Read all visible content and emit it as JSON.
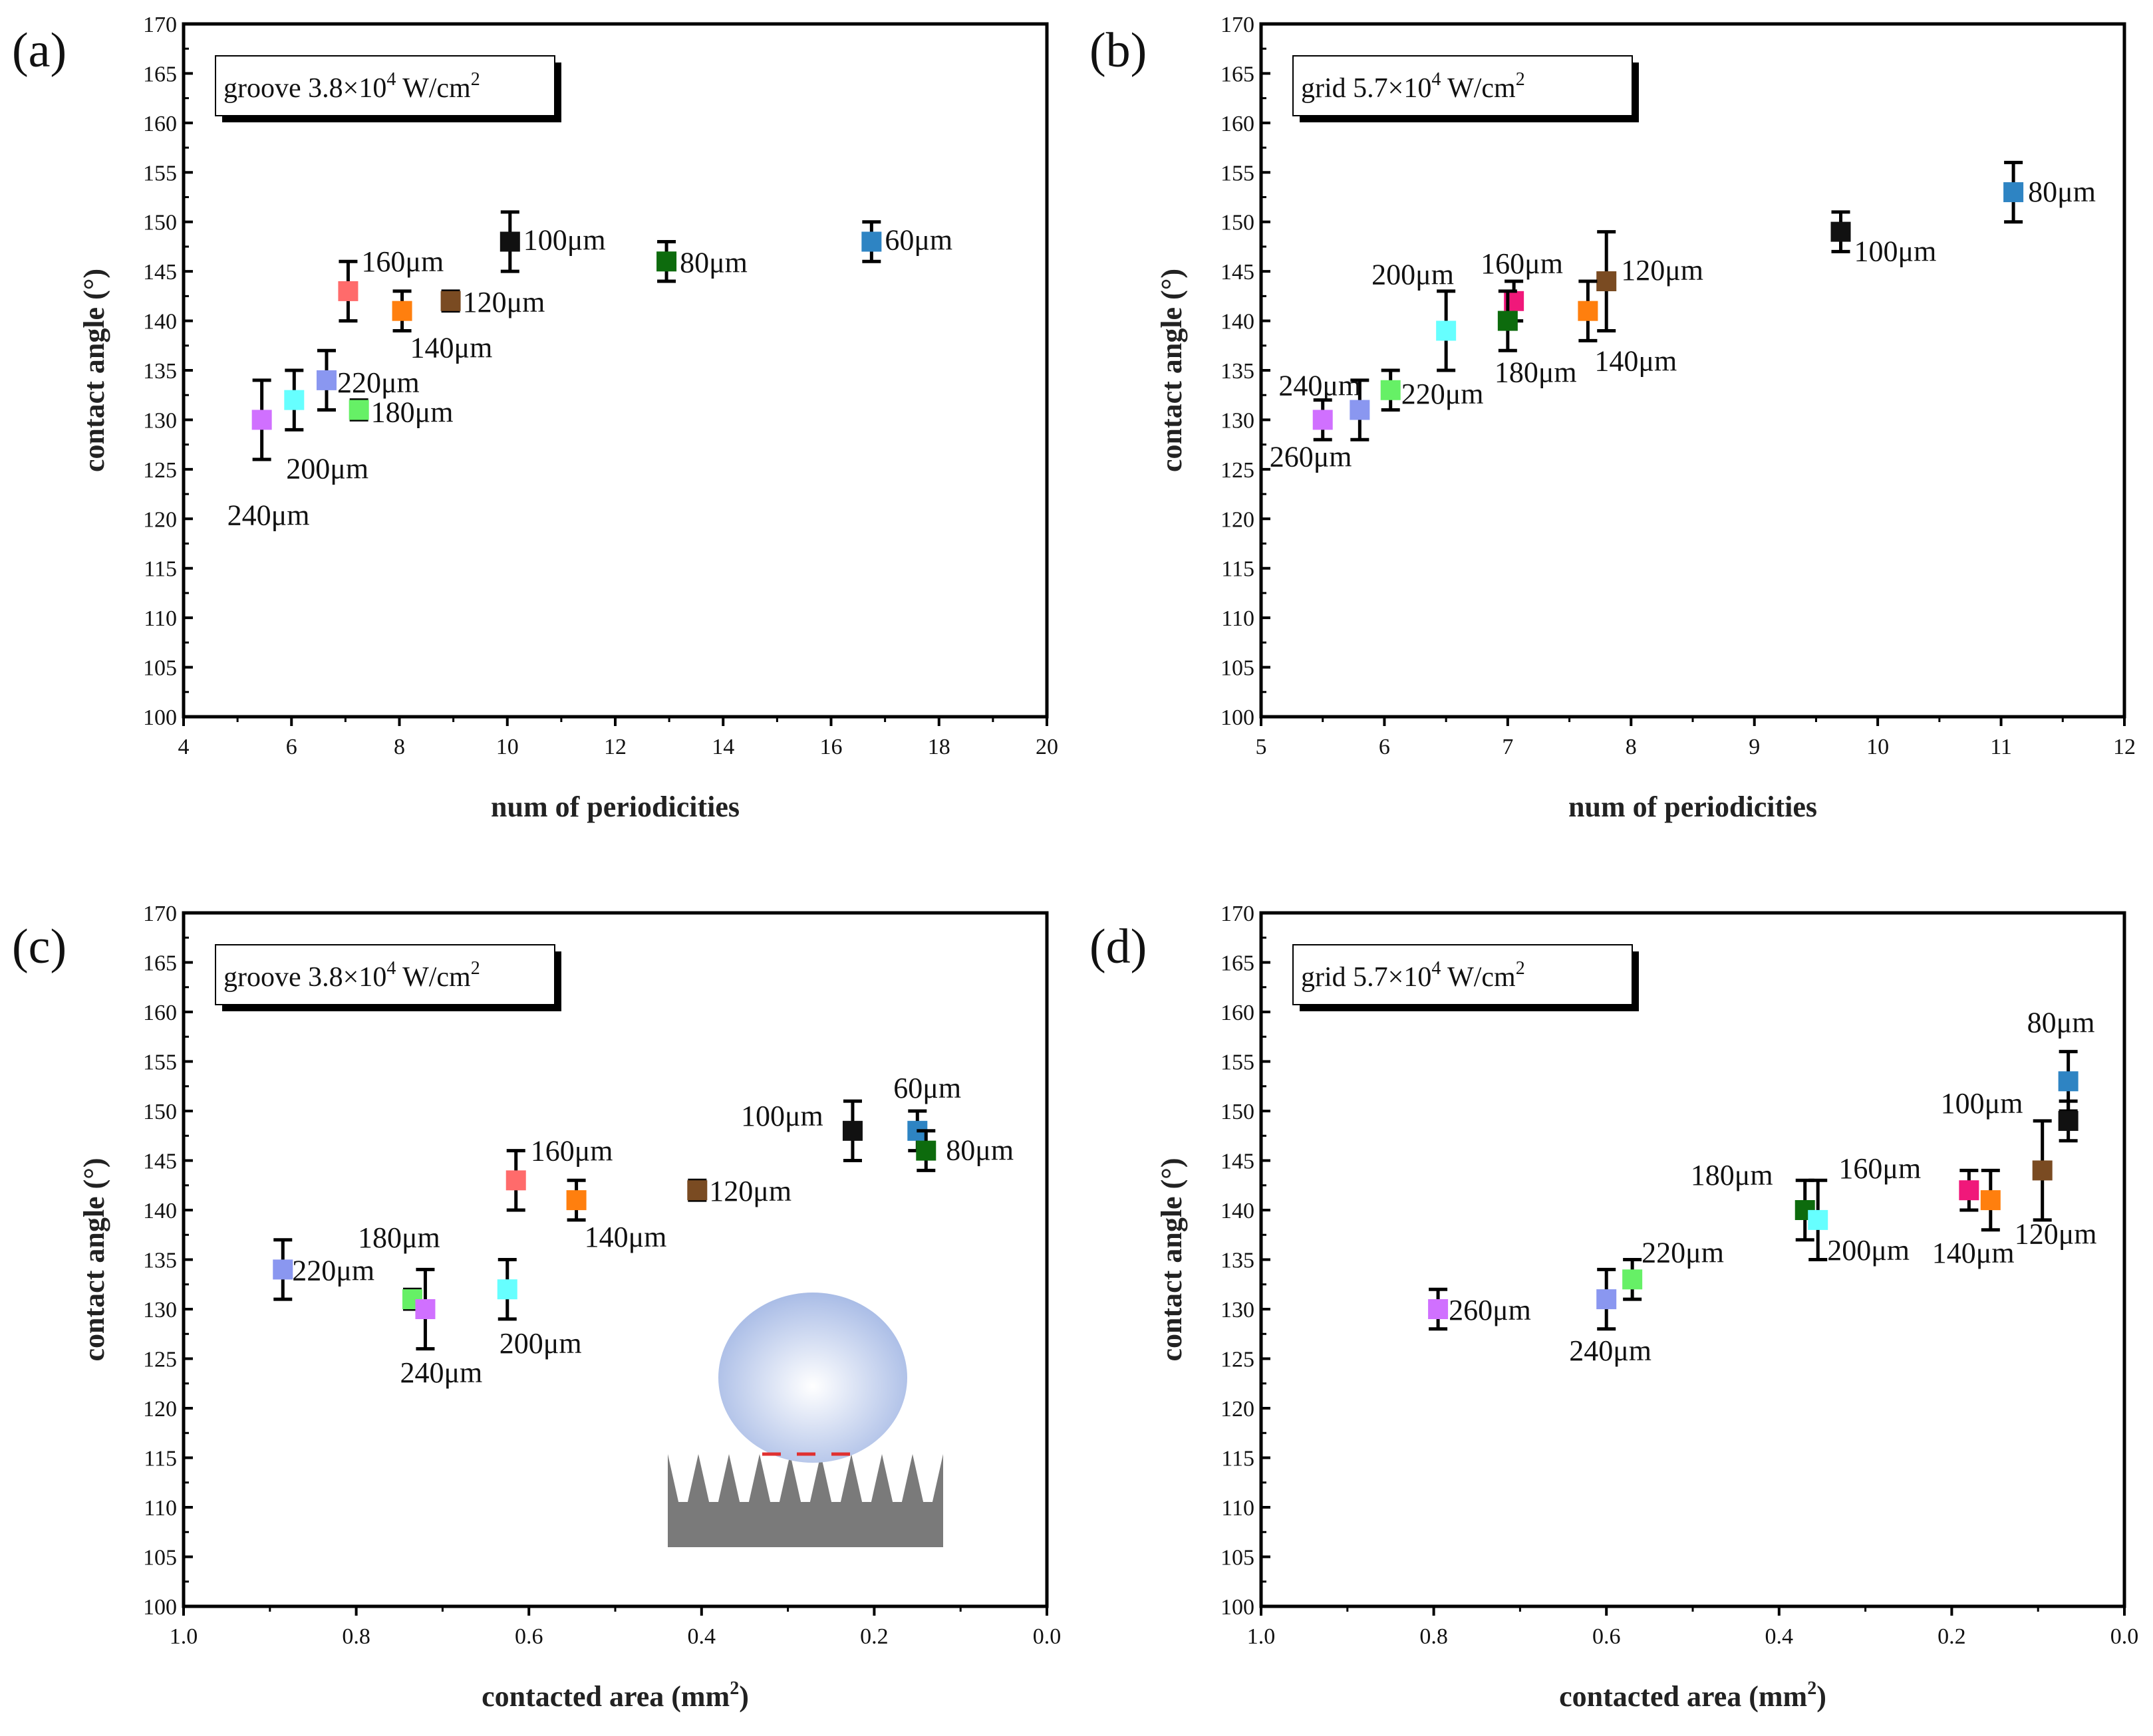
{
  "figure": {
    "colors": {
      "60um": "#2e84c3",
      "80um": "#0d6b0d",
      "100um": "#111111",
      "120um": "#7a4b22",
      "140um": "#ff7f0e",
      "160um": "#ff6b6b",
      "160um_grid": "#f0187a",
      "180um": "#66f066",
      "200um": "#66ffff",
      "220um": "#8a97f0",
      "240um": "#d070ff",
      "260um": "#d070ff",
      "180um_grid": "#0d6b0d"
    }
  },
  "chart_data": [
    {
      "type": "scatter",
      "panel": "(a)",
      "legend": {
        "base": "groove 3.8×10",
        "exp": "4",
        "tail": " W/cm",
        "tail_exp": "2"
      },
      "xlabel": "num of periodicities",
      "ylabel": "contact angle (°)",
      "xlim": [
        4,
        20
      ],
      "ylim": [
        100,
        170
      ],
      "xticks": [
        4,
        6,
        8,
        10,
        12,
        14,
        16,
        18,
        20
      ],
      "yticks": [
        100,
        105,
        110,
        115,
        120,
        125,
        130,
        135,
        140,
        145,
        150,
        155,
        160,
        165,
        170
      ],
      "reverse_x": false,
      "points": [
        {
          "label": "60μm",
          "x": 16.75,
          "y": 148,
          "err": 2,
          "color": "#2e84c3"
        },
        {
          "label": "80μm",
          "x": 12.95,
          "y": 146,
          "err": 2,
          "color": "#0d6b0d"
        },
        {
          "label": "100μm",
          "x": 10.05,
          "y": 148,
          "err": 3,
          "color": "#111111"
        },
        {
          "label": "120μm",
          "x": 8.95,
          "y": 142,
          "err": 1,
          "color": "#7a4b22"
        },
        {
          "label": "140μm",
          "x": 8.05,
          "y": 141,
          "err": 2,
          "color": "#ff7f0e"
        },
        {
          "label": "160μm",
          "x": 7.05,
          "y": 143,
          "err": 3,
          "color": "#ff6b6b"
        },
        {
          "label": "180μm",
          "x": 7.25,
          "y": 131,
          "err": 1,
          "color": "#66f066"
        },
        {
          "label": "200μm",
          "x": 6.05,
          "y": 132,
          "err": 3,
          "color": "#66ffff"
        },
        {
          "label": "220μm",
          "x": 6.65,
          "y": 134,
          "err": 3,
          "color": "#8a97f0"
        },
        {
          "label": "240μm",
          "x": 5.45,
          "y": 130,
          "err": 4,
          "color": "#d070ff"
        }
      ]
    },
    {
      "type": "scatter",
      "panel": "(b)",
      "legend": {
        "base": "grid 5.7×10",
        "exp": "4",
        "tail": " W/cm",
        "tail_exp": "2"
      },
      "xlabel": "num of periodicities",
      "ylabel": "contact angle (°)",
      "xlim": [
        5,
        12
      ],
      "ylim": [
        100,
        170
      ],
      "xticks": [
        5,
        6,
        7,
        8,
        9,
        10,
        11,
        12
      ],
      "yticks": [
        100,
        105,
        110,
        115,
        120,
        125,
        130,
        135,
        140,
        145,
        150,
        155,
        160,
        165,
        170
      ],
      "reverse_x": false,
      "points": [
        {
          "label": "80μm",
          "x": 11.1,
          "y": 153,
          "err": 3,
          "color": "#2e84c3"
        },
        {
          "label": "100μm",
          "x": 9.7,
          "y": 149,
          "err": 2,
          "color": "#111111"
        },
        {
          "label": "120μm",
          "x": 7.8,
          "y": 144,
          "err": 5,
          "color": "#7a4b22"
        },
        {
          "label": "140μm",
          "x": 7.65,
          "y": 141,
          "err": 3,
          "color": "#ff7f0e"
        },
        {
          "label": "160μm",
          "x": 7.05,
          "y": 142,
          "err": 2,
          "color": "#f0187a"
        },
        {
          "label": "180μm",
          "x": 7.0,
          "y": 140,
          "err": 3,
          "color": "#0d6b0d"
        },
        {
          "label": "200μm",
          "x": 6.5,
          "y": 139,
          "err": 4,
          "color": "#66ffff"
        },
        {
          "label": "220μm",
          "x": 6.05,
          "y": 133,
          "err": 2,
          "color": "#66f066"
        },
        {
          "label": "240μm",
          "x": 5.8,
          "y": 131,
          "err": 3,
          "color": "#8a97f0"
        },
        {
          "label": "260μm",
          "x": 5.5,
          "y": 130,
          "err": 2,
          "color": "#d070ff"
        }
      ]
    },
    {
      "type": "scatter",
      "panel": "(c)",
      "legend": {
        "base": "groove 3.8×10",
        "exp": "4",
        "tail": " W/cm",
        "tail_exp": "2"
      },
      "xlabel": "contacted area (mm",
      "xlabel_sup": "2",
      "xlabel_tail": ")",
      "ylabel": "contact angle (°)",
      "xlim": [
        1.0,
        0.0
      ],
      "ylim": [
        100,
        170
      ],
      "xticks": [
        1.0,
        0.8,
        0.6,
        0.4,
        0.2,
        0.0
      ],
      "xtick_labels": [
        "1.0",
        "0.8",
        "0.6",
        "0.4",
        "0.2",
        "0.0"
      ],
      "yticks": [
        100,
        105,
        110,
        115,
        120,
        125,
        130,
        135,
        140,
        145,
        150,
        155,
        160,
        165,
        170
      ],
      "reverse_x": true,
      "inset": "droplet on grooved surface",
      "points": [
        {
          "label": "60μm",
          "x": 0.15,
          "y": 148,
          "err": 2,
          "color": "#2e84c3"
        },
        {
          "label": "80μm",
          "x": 0.14,
          "y": 146,
          "err": 2,
          "color": "#0d6b0d"
        },
        {
          "label": "100μm",
          "x": 0.225,
          "y": 148,
          "err": 3,
          "color": "#111111"
        },
        {
          "label": "120μm",
          "x": 0.405,
          "y": 142,
          "err": 1,
          "color": "#7a4b22"
        },
        {
          "label": "140μm",
          "x": 0.545,
          "y": 141,
          "err": 2,
          "color": "#ff7f0e"
        },
        {
          "label": "160μm",
          "x": 0.615,
          "y": 143,
          "err": 3,
          "color": "#ff6b6b"
        },
        {
          "label": "180μm",
          "x": 0.735,
          "y": 131,
          "err": 1,
          "color": "#66f066"
        },
        {
          "label": "200μm",
          "x": 0.625,
          "y": 132,
          "err": 3,
          "color": "#66ffff"
        },
        {
          "label": "220μm",
          "x": 0.885,
          "y": 134,
          "err": 3,
          "color": "#8a97f0"
        },
        {
          "label": "240μm",
          "x": 0.72,
          "y": 130,
          "err": 4,
          "color": "#d070ff"
        }
      ]
    },
    {
      "type": "scatter",
      "panel": "(d)",
      "legend": {
        "base": "grid 5.7×10",
        "exp": "4",
        "tail": " W/cm",
        "tail_exp": "2"
      },
      "xlabel": "contacted area (mm",
      "xlabel_sup": "2",
      "xlabel_tail": ")",
      "ylabel": "contact angle (°)",
      "xlim": [
        1.0,
        0.0
      ],
      "ylim": [
        100,
        170
      ],
      "xticks": [
        1.0,
        0.8,
        0.6,
        0.4,
        0.2,
        0.0
      ],
      "xtick_labels": [
        "1.0",
        "0.8",
        "0.6",
        "0.4",
        "0.2",
        "0.0"
      ],
      "yticks": [
        100,
        105,
        110,
        115,
        120,
        125,
        130,
        135,
        140,
        145,
        150,
        155,
        160,
        165,
        170
      ],
      "reverse_x": true,
      "points": [
        {
          "label": "80μm",
          "x": 0.065,
          "y": 153,
          "err": 3,
          "color": "#2e84c3"
        },
        {
          "label": "100μm",
          "x": 0.065,
          "y": 149,
          "err": 2,
          "color": "#111111"
        },
        {
          "label": "120μm",
          "x": 0.095,
          "y": 144,
          "err": 5,
          "color": "#7a4b22"
        },
        {
          "label": "140μm",
          "x": 0.155,
          "y": 141,
          "err": 3,
          "color": "#ff7f0e"
        },
        {
          "label": "160μm",
          "x": 0.18,
          "y": 142,
          "err": 2,
          "color": "#f0187a"
        },
        {
          "label": "180μm",
          "x": 0.37,
          "y": 140,
          "err": 3,
          "color": "#0d6b0d"
        },
        {
          "label": "200μm",
          "x": 0.355,
          "y": 139,
          "err": 4,
          "color": "#66ffff"
        },
        {
          "label": "220μm",
          "x": 0.57,
          "y": 133,
          "err": 2,
          "color": "#66f066"
        },
        {
          "label": "240μm",
          "x": 0.6,
          "y": 131,
          "err": 3,
          "color": "#8a97f0"
        },
        {
          "label": "260μm",
          "x": 0.795,
          "y": 130,
          "err": 2,
          "color": "#d070ff"
        }
      ]
    }
  ]
}
